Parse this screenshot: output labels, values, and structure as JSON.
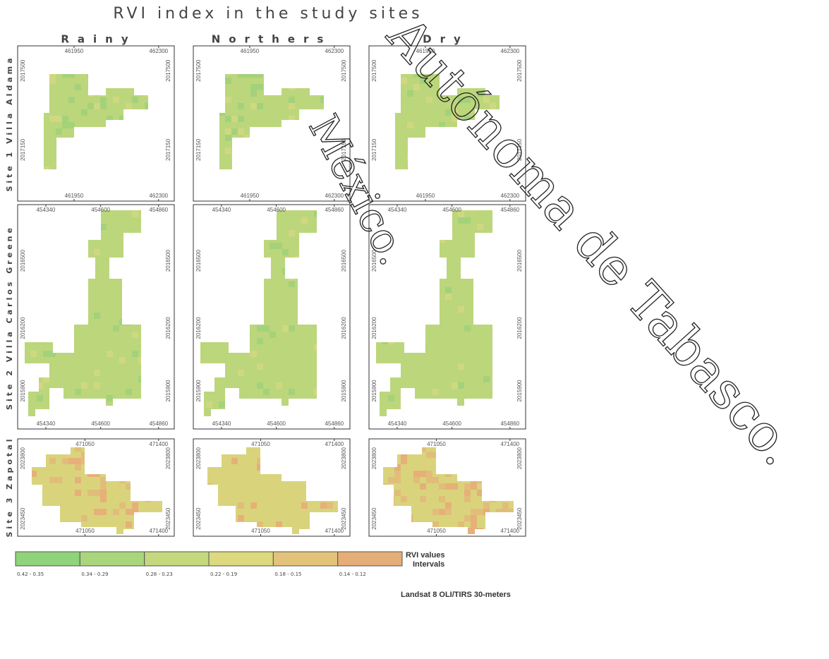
{
  "title": "RVI index in the study sites",
  "seasons": [
    "Rainy",
    "Northers",
    "Dry"
  ],
  "sites": [
    {
      "label": "Site 1 Villa Aldama",
      "x_labels": [
        "461950",
        "462300"
      ],
      "y_labels": [
        "2017500",
        "2017150"
      ]
    },
    {
      "label": "Site 2 Villa Carlos Greene",
      "x_labels": [
        "454340",
        "454600",
        "454860"
      ],
      "y_labels": [
        "2016500",
        "2016200",
        "2015900"
      ]
    },
    {
      "label": "Site 3 Zapotal",
      "x_labels": [
        "471050",
        "471400"
      ],
      "y_labels": [
        "2023800",
        "2023450"
      ]
    }
  ],
  "legend": {
    "title": "RVI values",
    "subtitle": "Intervals",
    "items": [
      {
        "label": "0.42 - 0.35",
        "color": "#8fd37a"
      },
      {
        "label": "0.34 - 0.29",
        "color": "#a9d67c"
      },
      {
        "label": "0.28 - 0.23",
        "color": "#c4d87e"
      },
      {
        "label": "0.22 - 0.19",
        "color": "#dcd97e"
      },
      {
        "label": "0.18 - 0.15",
        "color": "#e3c27a"
      },
      {
        "label": "0.14 - 0.12",
        "color": "#e5ad78"
      }
    ]
  },
  "source": "Landsat 8 OLI/TIRS 30-meters",
  "watermark": [
    "México.",
    "Autónoma de Tabasco."
  ]
}
